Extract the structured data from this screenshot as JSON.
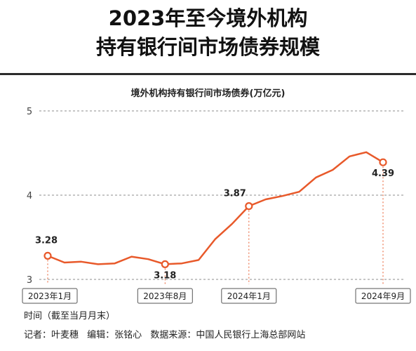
{
  "title_line1": "2023年至今境外机构",
  "title_line2": "持有银行间市场债券规模",
  "chart_data": {
    "type": "line",
    "title": "境外机构持有银行间市场债券(万亿元)",
    "xlabel": "时间（截至当月月末）",
    "ylabel": "",
    "ylim": [
      3,
      5
    ],
    "yticks": [
      3,
      4,
      5
    ],
    "grid": true,
    "x": [
      "2023-01",
      "2023-02",
      "2023-03",
      "2023-04",
      "2023-05",
      "2023-06",
      "2023-07",
      "2023-08",
      "2023-09",
      "2023-10",
      "2023-11",
      "2023-12",
      "2024-01",
      "2024-02",
      "2024-03",
      "2024-04",
      "2024-05",
      "2024-06",
      "2024-07",
      "2024-08",
      "2024-09"
    ],
    "values": [
      3.28,
      3.2,
      3.21,
      3.18,
      3.19,
      3.27,
      3.24,
      3.18,
      3.19,
      3.23,
      3.48,
      3.66,
      3.87,
      3.95,
      3.99,
      4.04,
      4.21,
      4.3,
      4.46,
      4.51,
      4.39
    ],
    "color": "#e8592a",
    "highlighted_points": [
      {
        "x": "2023-01",
        "value": 3.28,
        "label": "3.28"
      },
      {
        "x": "2023-08",
        "value": 3.18,
        "label": "3.18"
      },
      {
        "x": "2024-01",
        "value": 3.87,
        "label": "3.87"
      },
      {
        "x": "2024-09",
        "value": 4.39,
        "label": "4.39"
      }
    ],
    "x_tick_labels": [
      {
        "x": "2023-01",
        "label": "2023年1月"
      },
      {
        "x": "2023-08",
        "label": "2023年8月"
      },
      {
        "x": "2024-01",
        "label": "2024年1月"
      },
      {
        "x": "2024-09",
        "label": "2024年9月"
      }
    ]
  },
  "footer": {
    "reporter": "记者：叶麦穗",
    "editor": "编辑：张铭心",
    "source": "数据来源：中国人民银行上海总部网站"
  }
}
